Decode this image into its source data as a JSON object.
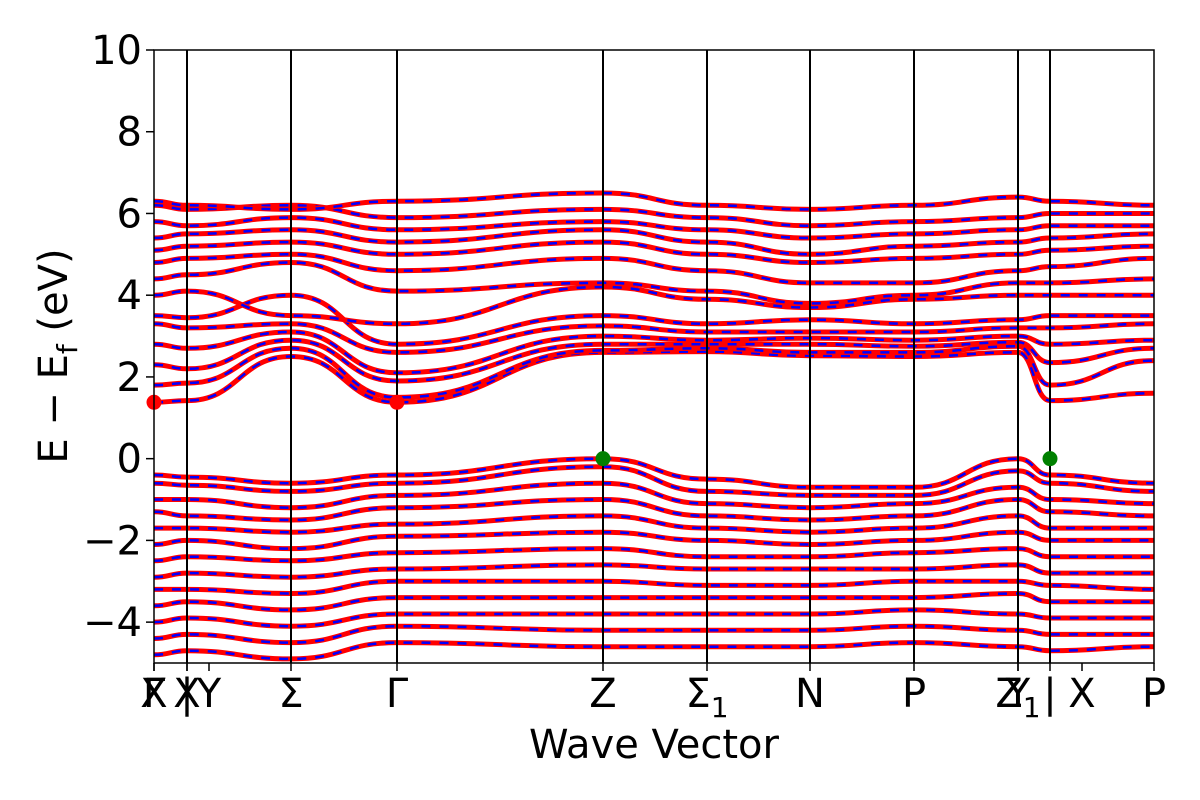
{
  "chart_data": {
    "type": "line",
    "title": "",
    "xlabel": "Wave Vector",
    "ylabel_parts": {
      "main": "E − E",
      "sub": "f",
      "unit": " (eV)"
    },
    "ylim": [
      -5,
      10
    ],
    "yticks": [
      {
        "value": -4,
        "label": "−4"
      },
      {
        "value": -2,
        "label": "−2"
      },
      {
        "value": 0,
        "label": "0"
      },
      {
        "value": 2,
        "label": "2"
      },
      {
        "value": 4,
        "label": "4"
      },
      {
        "value": 6,
        "label": "6"
      },
      {
        "value": 8,
        "label": "8"
      },
      {
        "value": 10,
        "label": "10"
      }
    ],
    "xlim": [
      0,
      1
    ],
    "high_symmetry_points": [
      {
        "pos": 0.0,
        "label": "Γ"
      },
      {
        "pos": 0.0,
        "label": "X"
      },
      {
        "pos": 0.033,
        "label": "X"
      },
      {
        "pos": 0.033,
        "label": "|"
      },
      {
        "pos": 0.055,
        "label": "Y"
      },
      {
        "pos": 0.137,
        "label": "Σ"
      },
      {
        "pos": 0.243,
        "label": "Γ"
      },
      {
        "pos": 0.449,
        "label": "Z"
      },
      {
        "pos": 0.553,
        "label": "Σ",
        "sub": "1"
      },
      {
        "pos": 0.656,
        "label": "N"
      },
      {
        "pos": 0.76,
        "label": "P"
      },
      {
        "pos": 0.864,
        "label": "Y"
      },
      {
        "pos": 0.864,
        "label": "Z",
        "sub": "1"
      },
      {
        "pos": 0.896,
        "label": "|"
      },
      {
        "pos": 0.928,
        "label": "X"
      },
      {
        "pos": 1.0,
        "label": "P"
      }
    ],
    "vertical_lines": [
      0.033,
      0.137,
      0.243,
      0.449,
      0.553,
      0.656,
      0.76,
      0.864,
      0.896
    ],
    "series_styles": [
      {
        "id": "spin-up",
        "color": "#ff0000",
        "style": "solid"
      },
      {
        "id": "spin-down",
        "color": "#0000ff",
        "style": "dashed"
      }
    ],
    "markers": [
      {
        "x": 0.0,
        "y": 1.38,
        "color": "#ff0000",
        "kind": "cbm"
      },
      {
        "x": 0.243,
        "y": 1.38,
        "color": "#ff0000",
        "kind": "cbm"
      },
      {
        "x": 0.449,
        "y": 0.0,
        "color": "#008000",
        "kind": "vbm"
      },
      {
        "x": 0.896,
        "y": 0.0,
        "color": "#008000",
        "kind": "vbm"
      }
    ],
    "bands_conduction": [
      [
        1.38,
        1.42,
        2.5,
        1.38,
        2.6,
        2.62,
        2.52,
        2.5,
        2.6,
        1.42,
        1.6
      ],
      [
        1.8,
        1.85,
        2.7,
        1.5,
        2.65,
        2.7,
        2.6,
        2.6,
        2.75,
        1.8,
        2.4
      ],
      [
        2.3,
        2.2,
        2.9,
        1.9,
        2.8,
        2.8,
        2.8,
        2.75,
        2.85,
        2.35,
        2.7
      ],
      [
        2.8,
        2.7,
        3.1,
        2.1,
        3.0,
        2.9,
        2.95,
        2.9,
        3.0,
        2.8,
        2.9
      ],
      [
        3.3,
        3.2,
        3.3,
        2.6,
        3.25,
        3.1,
        3.1,
        3.1,
        3.2,
        3.2,
        3.3
      ],
      [
        3.5,
        3.45,
        4.0,
        2.8,
        3.5,
        3.3,
        3.4,
        3.3,
        3.4,
        3.5,
        3.5
      ],
      [
        4.0,
        4.1,
        3.5,
        3.3,
        4.2,
        3.9,
        3.7,
        3.9,
        4.0,
        4.0,
        4.0
      ],
      [
        4.4,
        4.5,
        4.8,
        4.1,
        4.3,
        4.1,
        3.8,
        4.0,
        4.3,
        4.3,
        4.4
      ],
      [
        4.8,
        4.9,
        5.0,
        4.6,
        4.9,
        4.6,
        4.3,
        4.3,
        4.6,
        4.7,
        4.9
      ],
      [
        5.1,
        5.2,
        5.3,
        5.0,
        5.3,
        5.0,
        4.8,
        4.9,
        5.0,
        5.1,
        5.2
      ],
      [
        5.4,
        5.5,
        5.6,
        5.3,
        5.6,
        5.3,
        5.0,
        5.2,
        5.3,
        5.4,
        5.5
      ],
      [
        5.8,
        5.7,
        5.9,
        5.6,
        5.8,
        5.6,
        5.4,
        5.5,
        5.6,
        5.7,
        5.7
      ],
      [
        6.2,
        6.1,
        6.2,
        5.9,
        6.1,
        5.9,
        5.7,
        5.8,
        5.9,
        6.0,
        6.0
      ],
      [
        6.3,
        6.2,
        6.1,
        6.3,
        6.5,
        6.2,
        6.1,
        6.2,
        6.4,
        6.3,
        6.2
      ]
    ],
    "bands_valence": [
      [
        -0.4,
        -0.45,
        -0.6,
        -0.4,
        0.0,
        -0.5,
        -0.7,
        -0.7,
        0.0,
        -0.4,
        -0.6
      ],
      [
        -0.6,
        -0.65,
        -0.8,
        -0.6,
        -0.2,
        -0.8,
        -0.9,
        -0.9,
        -0.3,
        -0.6,
        -0.8
      ],
      [
        -1.0,
        -1.0,
        -1.2,
        -0.9,
        -0.6,
        -1.1,
        -1.2,
        -1.1,
        -0.7,
        -1.0,
        -1.1
      ],
      [
        -1.3,
        -1.4,
        -1.5,
        -1.2,
        -1.0,
        -1.4,
        -1.5,
        -1.4,
        -1.0,
        -1.3,
        -1.4
      ],
      [
        -1.7,
        -1.7,
        -1.8,
        -1.6,
        -1.4,
        -1.7,
        -1.8,
        -1.7,
        -1.4,
        -1.7,
        -1.7
      ],
      [
        -2.1,
        -2.0,
        -2.2,
        -1.9,
        -1.8,
        -2.0,
        -2.1,
        -2.0,
        -1.8,
        -2.0,
        -2.0
      ],
      [
        -2.5,
        -2.4,
        -2.5,
        -2.3,
        -2.2,
        -2.4,
        -2.4,
        -2.3,
        -2.2,
        -2.4,
        -2.4
      ],
      [
        -2.9,
        -2.8,
        -2.9,
        -2.7,
        -2.6,
        -2.7,
        -2.7,
        -2.7,
        -2.6,
        -2.8,
        -2.8
      ],
      [
        -3.2,
        -3.2,
        -3.3,
        -3.0,
        -3.0,
        -3.1,
        -3.1,
        -3.0,
        -3.0,
        -3.1,
        -3.2
      ],
      [
        -3.6,
        -3.5,
        -3.7,
        -3.4,
        -3.4,
        -3.4,
        -3.4,
        -3.4,
        -3.3,
        -3.5,
        -3.5
      ],
      [
        -4.0,
        -3.9,
        -4.1,
        -3.8,
        -3.8,
        -3.8,
        -3.8,
        -3.7,
        -3.8,
        -3.9,
        -3.9
      ],
      [
        -4.4,
        -4.3,
        -4.5,
        -4.1,
        -4.2,
        -4.2,
        -4.2,
        -4.1,
        -4.2,
        -4.3,
        -4.3
      ],
      [
        -4.8,
        -4.7,
        -4.9,
        -4.5,
        -4.6,
        -4.6,
        -4.6,
        -4.5,
        -4.6,
        -4.7,
        -4.6
      ]
    ]
  }
}
